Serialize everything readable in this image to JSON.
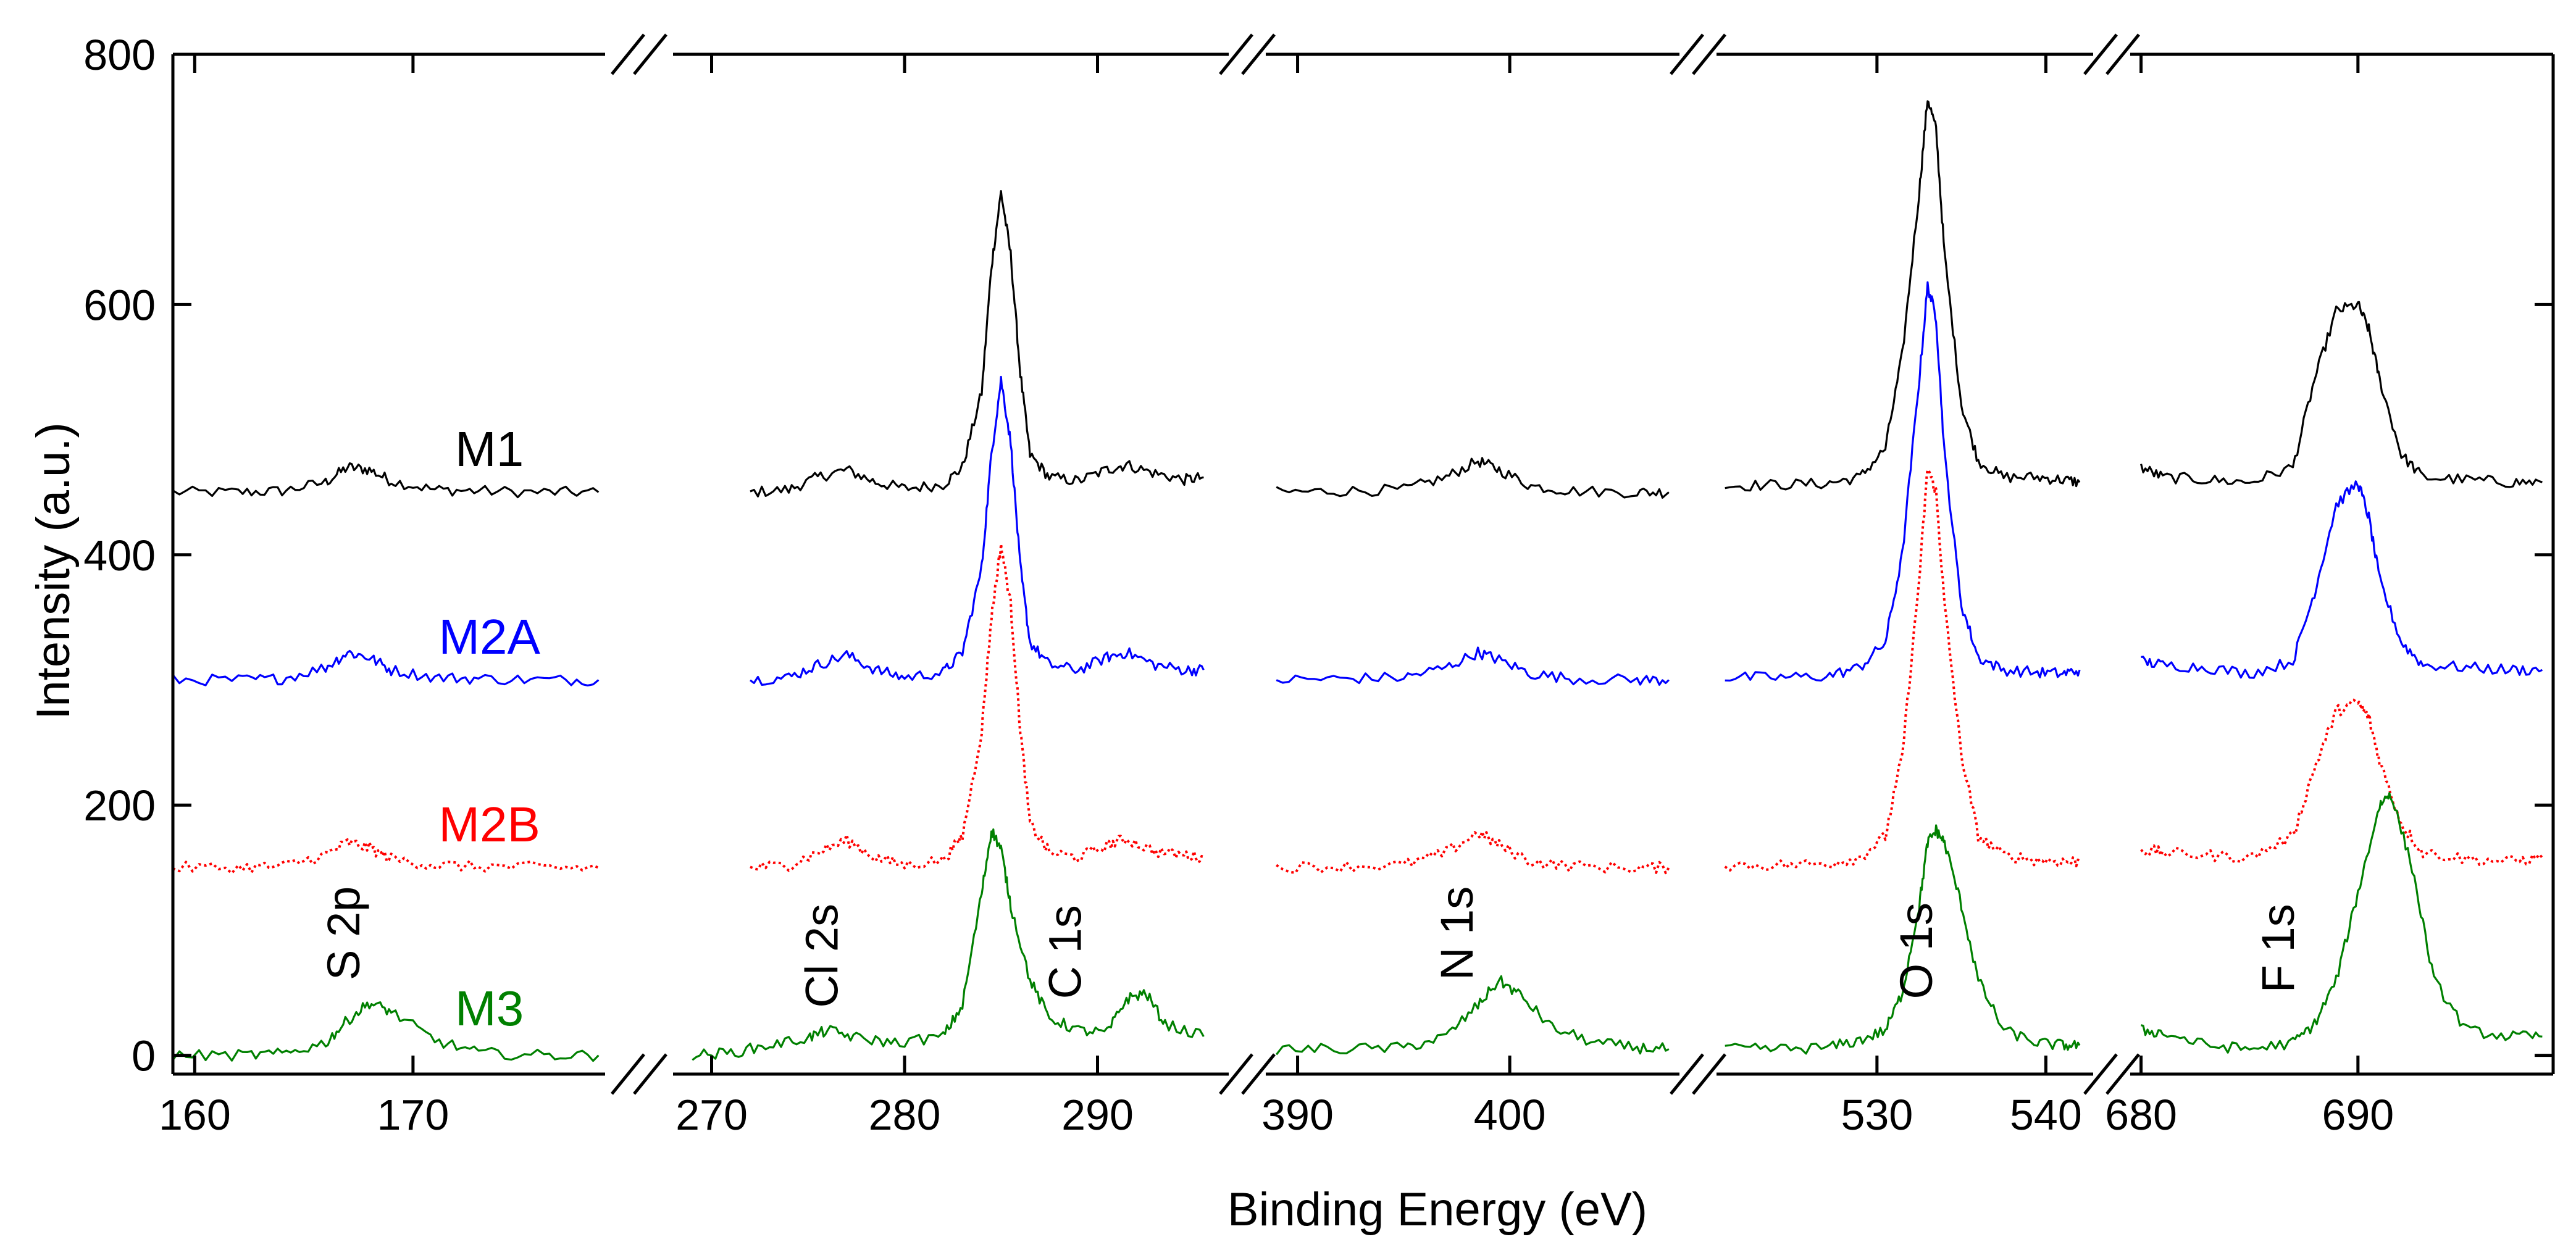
{
  "chart_data": {
    "type": "line",
    "title": "",
    "xlabel": "Binding Energy (eV)",
    "ylabel": "Intensity (a.u.)",
    "ylim": [
      -15,
      800
    ],
    "y_ticks": [
      {
        "value": 0,
        "label": "0"
      },
      {
        "value": 200,
        "label": "200"
      },
      {
        "value": 400,
        "label": "400"
      },
      {
        "value": 600,
        "label": "600"
      },
      {
        "value": 800,
        "label": "800"
      }
    ],
    "grid": false,
    "axis_break": true,
    "segments": [
      {
        "name": "S 2p region",
        "xlim": [
          159,
          178.8
        ],
        "ticks": [
          {
            "value": 160,
            "label": "160"
          },
          {
            "value": 170,
            "label": "170"
          }
        ],
        "peak_label": {
          "text": "S 2p",
          "x": 166.8,
          "y": 60
        }
      },
      {
        "name": "Cl 2s / C 1s region",
        "xlim": [
          268,
          296.8
        ],
        "ticks": [
          {
            "value": 270,
            "label": "270"
          },
          {
            "value": 280,
            "label": "280"
          },
          {
            "value": 290,
            "label": "290"
          }
        ],
        "peak_label": [
          {
            "text": "Cl 2s",
            "x": 275.7,
            "y": 38
          },
          {
            "text": "C 1s",
            "x": 288.3,
            "y": 45
          }
        ]
      },
      {
        "name": "N 1s region",
        "xlim": [
          388.5,
          408
        ],
        "ticks": [
          {
            "value": 390,
            "label": "390"
          },
          {
            "value": 400,
            "label": "400"
          }
        ],
        "peak_label": {
          "text": "N 1s",
          "x": 397.5,
          "y": 60
        }
      },
      {
        "name": "O 1s region",
        "xlim": [
          520.5,
          542.8
        ],
        "ticks": [
          {
            "value": 530,
            "label": "530"
          },
          {
            "value": 540,
            "label": "540"
          }
        ],
        "peak_label": {
          "text": "O 1s",
          "x": 532.3,
          "y": 45
        }
      },
      {
        "name": "F 1s region",
        "xlim": [
          679.5,
          699
        ],
        "ticks": [
          {
            "value": 680,
            "label": "680"
          },
          {
            "value": 690,
            "label": "690"
          }
        ],
        "peak_label": {
          "text": "F 1s",
          "x": 686.3,
          "y": 50
        }
      }
    ],
    "series": [
      {
        "name": "M1",
        "color": "#000000",
        "style": "solid",
        "label": {
          "text": "M1",
          "segment": 0,
          "x": 173.5,
          "y": 471
        },
        "regions": [
          {
            "x": [
              159,
              162,
              164,
              166,
              167,
              168,
              169,
              171,
              173,
              176,
              178.5
            ],
            "y": [
              450,
              450,
              451,
              458,
              470,
              468,
              459,
              452,
              451,
              450,
              450
            ]
          },
          {
            "x": [
              272,
              274,
              275.5,
              277,
              278.5,
              280,
              282,
              283,
              284,
              284.5,
              285,
              285.5,
              286,
              286.5,
              287.5,
              289,
              290.5,
              291.5,
              293,
              294.5,
              295.5
            ],
            "y": [
              450,
              452,
              462,
              468,
              458,
              453,
              456,
              470,
              530,
              630,
              690,
              640,
              545,
              480,
              462,
              459,
              468,
              472,
              465,
              460,
              462
            ]
          },
          {
            "x": [
              389,
              392,
              395,
              397,
              398.5,
              399.5,
              401,
              403,
              406,
              407.5
            ],
            "y": [
              450,
              451,
              452,
              462,
              475,
              468,
              455,
              451,
              450,
              450
            ]
          },
          {
            "x": [
              521,
              524,
              527,
              529,
              530.5,
              531.5,
              532.5,
              533,
              533.5,
              534,
              535,
              536,
              537.5,
              539.5,
              541,
              542
            ],
            "y": [
              455,
              456,
              457,
              462,
              485,
              560,
              690,
              765,
              740,
              640,
              520,
              475,
              462,
              462,
              460,
              458
            ]
          },
          {
            "x": [
              680,
              681,
              683,
              685,
              687,
              688,
              689,
              690,
              690.5,
              691,
              692,
              693,
              695,
              697,
              698.5
            ],
            "y": [
              470,
              462,
              460,
              458,
              470,
              540,
              595,
              600,
              580,
              540,
              480,
              462,
              460,
              458,
              458
            ]
          }
        ]
      },
      {
        "name": "M2A",
        "color": "#0000ff",
        "style": "solid",
        "label": {
          "text": "M2A",
          "segment": 0,
          "x": 173.5,
          "y": 321
        },
        "regions": [
          {
            "x": [
              159,
              162,
              164,
              166,
              167,
              168,
              169,
              171,
              173,
              176,
              178.5
            ],
            "y": [
              300,
              300,
              301,
              310,
              322,
              318,
              308,
              302,
              301,
              300,
              300
            ]
          },
          {
            "x": [
              272,
              274,
              275.5,
              277,
              278.5,
              280,
              282,
              283,
              284,
              284.5,
              285,
              285.5,
              286,
              286.5,
              287.5,
              289,
              290.5,
              291.5,
              293,
              294.5,
              295.5
            ],
            "y": [
              300,
              302,
              312,
              320,
              308,
              302,
              306,
              322,
              390,
              480,
              540,
              490,
              390,
              330,
              312,
              308,
              318,
              322,
              312,
              308,
              308
            ]
          },
          {
            "x": [
              389,
              392,
              395,
              397,
              398.5,
              399.5,
              401,
              403,
              406,
              407.5
            ],
            "y": [
              300,
              301,
              302,
              310,
              322,
              316,
              305,
              301,
              300,
              300
            ]
          },
          {
            "x": [
              521,
              524,
              527,
              529,
              530.5,
              531.5,
              532.5,
              533,
              533.5,
              534,
              535,
              536,
              537.5,
              539.5,
              541,
              542
            ],
            "y": [
              302,
              302,
              303,
              310,
              330,
              400,
              540,
              615,
              590,
              480,
              360,
              318,
              308,
              306,
              305,
              308
            ]
          },
          {
            "x": [
              680,
              681,
              683,
              685,
              687,
              688,
              689,
              690,
              690.5,
              691,
              692,
              693,
              695,
              697,
              698.5
            ],
            "y": [
              315,
              312,
              310,
              305,
              315,
              370,
              440,
              458,
              430,
              380,
              330,
              312,
              310,
              308,
              308
            ]
          }
        ]
      },
      {
        "name": "M2B",
        "color": "#ff0000",
        "style": "dotted",
        "label": {
          "text": "M2B",
          "segment": 0,
          "x": 173.5,
          "y": 171
        },
        "regions": [
          {
            "x": [
              159,
              162,
              164,
              166,
              167,
              168,
              169,
              171,
              173,
              176,
              178.5
            ],
            "y": [
              150,
              150,
              151,
              160,
              170,
              166,
              157,
              152,
              151,
              150,
              150
            ]
          },
          {
            "x": [
              272,
              274,
              275.5,
              277,
              278.5,
              280,
              282,
              283,
              284,
              284.5,
              285,
              285.5,
              286,
              286.5,
              287.5,
              289,
              290.5,
              291.5,
              293,
              294.5,
              295.5
            ],
            "y": [
              150,
              152,
              162,
              172,
              158,
              152,
              156,
              175,
              260,
              350,
              408,
              360,
              260,
              185,
              162,
              158,
              168,
              173,
              163,
              160,
              158
            ]
          },
          {
            "x": [
              389,
              392,
              395,
              397,
              398.5,
              399.5,
              401,
              403,
              406,
              407.5
            ],
            "y": [
              150,
              151,
              152,
              162,
              178,
              168,
              155,
              151,
              150,
              150
            ]
          },
          {
            "x": [
              521,
              524,
              527,
              529,
              530.5,
              531.5,
              532.5,
              533,
              533.5,
              534,
              535,
              536,
              537.5,
              539.5,
              541,
              542
            ],
            "y": [
              152,
              152,
              153,
              158,
              175,
              240,
              380,
              470,
              450,
              360,
              240,
              175,
              160,
              156,
              155,
              155
            ]
          },
          {
            "x": [
              680,
              681,
              683,
              685,
              687,
              688,
              689,
              690,
              690.5,
              691,
              692,
              693,
              695,
              697,
              698.5
            ],
            "y": [
              165,
              162,
              160,
              158,
              175,
              230,
              275,
              282,
              270,
              235,
              185,
              162,
              157,
              155,
              158
            ]
          }
        ]
      },
      {
        "name": "M3",
        "color": "#008000",
        "style": "solid",
        "label": {
          "text": "M3",
          "segment": 0,
          "x": 173.5,
          "y": 24
        },
        "regions": [
          {
            "x": [
              159,
              162,
              164,
              166,
              167,
              168,
              169,
              171,
              173,
              176,
              178.5
            ],
            "y": [
              0,
              0,
              1,
              10,
              28,
              42,
              35,
              12,
              2,
              0,
              0
            ]
          },
          {
            "x": [
              269,
              271,
              273,
              275,
              276,
              277.5,
              279.5,
              282,
              283,
              284,
              284.5,
              285,
              285.5,
              286.5,
              287.5,
              289,
              290.5,
              291.5,
              292.5,
              293.5,
              295.5
            ],
            "y": [
              0,
              2,
              8,
              14,
              20,
              14,
              10,
              15,
              40,
              130,
              180,
              165,
              120,
              60,
              30,
              20,
              18,
              45,
              50,
              25,
              15
            ]
          },
          {
            "x": [
              389,
              392,
              395,
              397,
              398.5,
              399.5,
              400.5,
              402,
              404,
              406,
              407.5
            ],
            "y": [
              5,
              5,
              6,
              15,
              40,
              60,
              48,
              22,
              10,
              6,
              5
            ]
          },
          {
            "x": [
              521,
              524,
              527,
              529,
              530.5,
              531.5,
              532.5,
              533,
              533.5,
              534,
              535,
              536,
              537.5,
              539.5,
              541,
              542
            ],
            "y": [
              5,
              5,
              6,
              12,
              20,
              50,
              120,
              170,
              180,
              170,
              120,
              60,
              20,
              10,
              8,
              8
            ]
          },
          {
            "x": [
              680,
              681,
              683,
              685,
              687,
              688,
              689,
              690,
              691,
              691.5,
              692.5,
              693.5,
              695,
              697,
              698.5
            ],
            "y": [
              20,
              18,
              8,
              5,
              10,
              25,
              60,
              130,
              200,
              210,
              150,
              60,
              20,
              15,
              15
            ]
          }
        ]
      }
    ]
  }
}
